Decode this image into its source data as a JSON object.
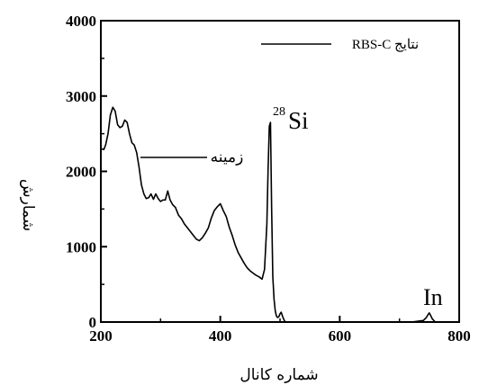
{
  "chart_data": {
    "type": "line",
    "title": "",
    "xlabel": "شماره کانال",
    "ylabel": "شمارش",
    "xlim": [
      200,
      800
    ],
    "ylim": [
      0,
      4000
    ],
    "x_ticks": [
      200,
      400,
      600,
      800
    ],
    "y_ticks": [
      0,
      1000,
      2000,
      3000,
      4000
    ],
    "x_tick_labels": [
      "200",
      "400",
      "600",
      "800"
    ],
    "y_tick_labels": [
      "0",
      "1000",
      "2000",
      "3000",
      "4000"
    ],
    "grid": false,
    "legend_position": "top-right",
    "series": [
      {
        "name": "RBS-C نتایج",
        "color": "#000000",
        "x": [
          200,
          205,
          208,
          212,
          216,
          220,
          224,
          228,
          232,
          236,
          240,
          244,
          248,
          252,
          256,
          260,
          264,
          268,
          272,
          276,
          280,
          284,
          288,
          292,
          296,
          300,
          304,
          308,
          312,
          316,
          320,
          325,
          330,
          335,
          340,
          345,
          350,
          355,
          360,
          365,
          370,
          375,
          380,
          385,
          390,
          395,
          400,
          405,
          410,
          415,
          420,
          425,
          430,
          435,
          440,
          445,
          450,
          455,
          460,
          465,
          470,
          474,
          478,
          480,
          482,
          484,
          486,
          488,
          490,
          492,
          494,
          496,
          498,
          500,
          502,
          504,
          506,
          508,
          510,
          520,
          560,
          600,
          640,
          680,
          720,
          740,
          745,
          748,
          750,
          752,
          755,
          760,
          780,
          800
        ],
        "y": [
          2300,
          2290,
          2350,
          2500,
          2750,
          2850,
          2800,
          2620,
          2580,
          2600,
          2680,
          2650,
          2500,
          2380,
          2350,
          2250,
          2050,
          1820,
          1700,
          1640,
          1650,
          1700,
          1630,
          1700,
          1640,
          1600,
          1620,
          1620,
          1740,
          1620,
          1560,
          1520,
          1420,
          1370,
          1300,
          1250,
          1200,
          1150,
          1100,
          1080,
          1120,
          1180,
          1250,
          1380,
          1480,
          1530,
          1570,
          1480,
          1400,
          1260,
          1150,
          1020,
          920,
          850,
          780,
          720,
          680,
          650,
          620,
          600,
          570,
          700,
          1300,
          2000,
          2600,
          2650,
          1500,
          600,
          300,
          150,
          80,
          60,
          70,
          110,
          130,
          80,
          40,
          10,
          0,
          0,
          0,
          0,
          0,
          0,
          0,
          20,
          60,
          100,
          120,
          90,
          40,
          0,
          0,
          0
        ]
      }
    ],
    "annotations": [
      {
        "text": "زمینه",
        "x": 330,
        "y": 2250
      },
      {
        "text": "Si",
        "superscript": "28",
        "x": 487,
        "y": 2700
      },
      {
        "text": "In",
        "x": 750,
        "y": 220
      }
    ]
  }
}
